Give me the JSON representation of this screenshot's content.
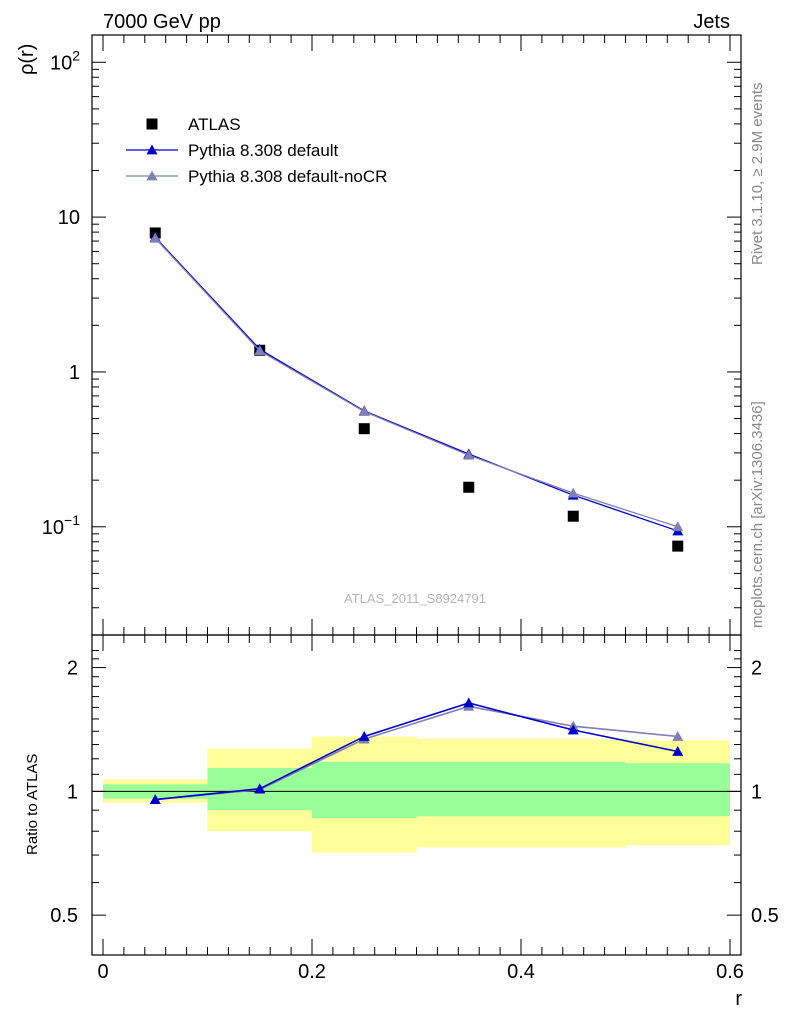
{
  "header": {
    "left": "7000 GeV pp",
    "right": "Jets"
  },
  "side": {
    "rivet": "Rivet 3.1.10, ≥ 2.9M events",
    "mcplots": "mcplots.cern.ch [arXiv:1306.3436]"
  },
  "watermark": "ATLAS_2011_S8924791",
  "colors": {
    "atlas": "#000000",
    "pythia_default": "#0000cc",
    "pythia_nocr": "#7f7fb2",
    "band_inner": "#99ff99",
    "band_outer": "#ffff99"
  },
  "chart_data": [
    {
      "type": "scatter",
      "panel": "main",
      "ylabel": "ρ(r)",
      "yscale": "log",
      "xlim": [
        0,
        0.6
      ],
      "ylim": [
        0.02,
        150
      ],
      "y_ticks": [
        {
          "value": 100,
          "base": "10",
          "exp": "2"
        },
        {
          "value": 10,
          "base": "10",
          "exp": ""
        },
        {
          "value": 1,
          "base": "1",
          "exp": ""
        },
        {
          "value": 0.1,
          "base": "10",
          "exp": "−1"
        }
      ],
      "legend_position": "top-left",
      "x": [
        0.05,
        0.15,
        0.25,
        0.35,
        0.45,
        0.55
      ],
      "series": [
        {
          "name": "ATLAS",
          "marker": "square",
          "values": [
            7.9,
            1.38,
            0.43,
            0.18,
            0.117,
            0.075
          ]
        },
        {
          "name": "Pythia 8.308 default",
          "marker": "triangle",
          "values": [
            7.4,
            1.4,
            0.56,
            0.295,
            0.16,
            0.094
          ]
        },
        {
          "name": "Pythia 8.308 default-noCR",
          "marker": "triangle",
          "values": [
            7.3,
            1.37,
            0.555,
            0.29,
            0.165,
            0.1
          ]
        }
      ]
    },
    {
      "type": "line",
      "panel": "ratio",
      "ylabel": "Ratio to ATLAS",
      "xlabel": "r",
      "yscale": "log",
      "xlim": [
        0,
        0.6
      ],
      "ylim": [
        0.4,
        2.4
      ],
      "y_ticks": [
        0.5,
        1,
        2
      ],
      "x_ticks": [
        0,
        0.2,
        0.4,
        0.6
      ],
      "bands": [
        {
          "x0": 0.0,
          "x1": 0.1,
          "inner": [
            0.96,
            1.04
          ],
          "outer": [
            0.94,
            1.07
          ]
        },
        {
          "x0": 0.1,
          "x1": 0.2,
          "inner": [
            0.9,
            1.14
          ],
          "outer": [
            0.8,
            1.27
          ]
        },
        {
          "x0": 0.2,
          "x1": 0.3,
          "inner": [
            0.86,
            1.18
          ],
          "outer": [
            0.71,
            1.36
          ]
        },
        {
          "x0": 0.3,
          "x1": 0.5,
          "inner": [
            0.87,
            1.18
          ],
          "outer": [
            0.73,
            1.34
          ]
        },
        {
          "x0": 0.5,
          "x1": 0.6,
          "inner": [
            0.87,
            1.17
          ],
          "outer": [
            0.74,
            1.33
          ]
        }
      ],
      "x": [
        0.05,
        0.15,
        0.25,
        0.35,
        0.45,
        0.55
      ],
      "series": [
        {
          "name": "Pythia 8.308 default",
          "values": [
            0.955,
            1.015,
            1.36,
            1.64,
            1.41,
            1.25
          ]
        },
        {
          "name": "Pythia 8.308 default-noCR",
          "values": [
            0.955,
            1.01,
            1.34,
            1.61,
            1.44,
            1.36
          ]
        }
      ]
    }
  ]
}
